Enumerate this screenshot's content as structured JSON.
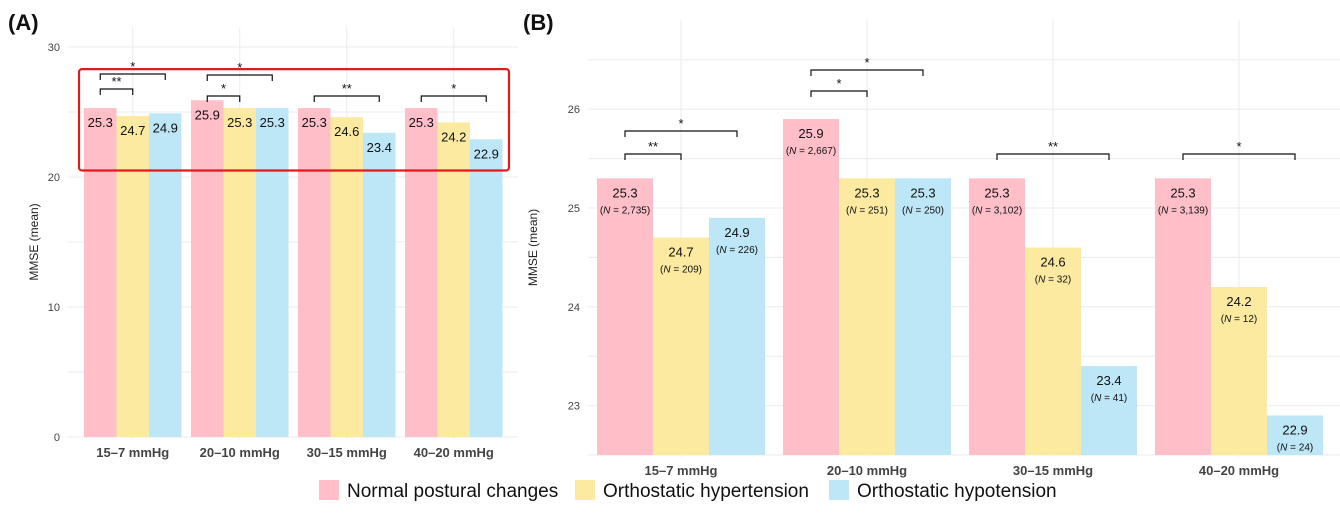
{
  "colors": {
    "Normal postural changes": "#ffbfc9",
    "Orthostatic hypertension": "#fceaa0",
    "Orthostatic hypotension": "#bde6f7",
    "highlight": "#e31a1c"
  },
  "legend": [
    "Normal postural changes",
    "Orthostatic hypertension",
    "Orthostatic hypotension"
  ],
  "chart_data": [
    {
      "type": "bar",
      "panel": "(A)",
      "ylabel": "MMSE (mean)",
      "ylim": [
        0,
        30
      ],
      "yticks": [
        0,
        10,
        20,
        30
      ],
      "categories": [
        "15–7 mmHg",
        "20–10 mmHg",
        "30–15 mmHg",
        "40–20 mmHg"
      ],
      "series": [
        {
          "name": "Normal postural changes",
          "values": [
            25.3,
            25.9,
            25.3,
            25.3
          ],
          "labels": [
            "25.3",
            "25.9",
            "25.3",
            "25.3"
          ]
        },
        {
          "name": "Orthostatic hypertension",
          "values": [
            24.7,
            25.3,
            24.6,
            24.2
          ],
          "labels": [
            "24.7",
            "25.3",
            "24.6",
            "24.2"
          ]
        },
        {
          "name": "Orthostatic hypotension",
          "values": [
            24.9,
            25.3,
            23.4,
            22.9
          ],
          "labels": [
            "24.9",
            "25.3",
            "23.4",
            "22.9"
          ]
        }
      ],
      "significance": [
        {
          "category": 0,
          "from": 0,
          "to": 1,
          "label": "**"
        },
        {
          "category": 0,
          "from": 0,
          "to": 2,
          "label": "*"
        },
        {
          "category": 1,
          "from": 0,
          "to": 1,
          "label": "*"
        },
        {
          "category": 1,
          "from": 0,
          "to": 2,
          "label": "*"
        },
        {
          "category": 2,
          "from": 0,
          "to": 2,
          "label": "**"
        },
        {
          "category": 3,
          "from": 0,
          "to": 2,
          "label": "*"
        }
      ],
      "highlight_range": [
        20.5,
        28.3
      ],
      "grid": true
    },
    {
      "type": "bar",
      "panel": "(B)",
      "ylabel": "MMSE (mean)",
      "ylim": [
        22.5,
        26.7
      ],
      "yticks": [
        23,
        24,
        25,
        26
      ],
      "categories": [
        "15–7 mmHg",
        "20–10 mmHg",
        "30–15 mmHg",
        "40–20 mmHg"
      ],
      "series": [
        {
          "name": "Normal postural changes",
          "values": [
            25.3,
            25.9,
            25.3,
            25.3
          ],
          "labels": [
            "25.3",
            "25.9",
            "25.3",
            "25.3"
          ],
          "n": [
            "2,735",
            "2,667",
            "3,102",
            "3,139"
          ]
        },
        {
          "name": "Orthostatic hypertension",
          "values": [
            24.7,
            25.3,
            24.6,
            24.2
          ],
          "labels": [
            "24.7",
            "25.3",
            "24.6",
            "24.2"
          ],
          "n": [
            "209",
            "251",
            "32",
            "12"
          ]
        },
        {
          "name": "Orthostatic hypotension",
          "values": [
            24.9,
            25.3,
            23.4,
            22.9
          ],
          "labels": [
            "24.9",
            "25.3",
            "23.4",
            "22.9"
          ],
          "n": [
            "226",
            "250",
            "41",
            "24"
          ]
        }
      ],
      "significance": [
        {
          "category": 0,
          "from": 0,
          "to": 1,
          "label": "**"
        },
        {
          "category": 0,
          "from": 0,
          "to": 2,
          "label": "*"
        },
        {
          "category": 1,
          "from": 0,
          "to": 1,
          "label": "*"
        },
        {
          "category": 1,
          "from": 0,
          "to": 2,
          "label": "*"
        },
        {
          "category": 2,
          "from": 0,
          "to": 2,
          "label": "**"
        },
        {
          "category": 3,
          "from": 0,
          "to": 2,
          "label": "*"
        }
      ],
      "grid": true
    }
  ]
}
